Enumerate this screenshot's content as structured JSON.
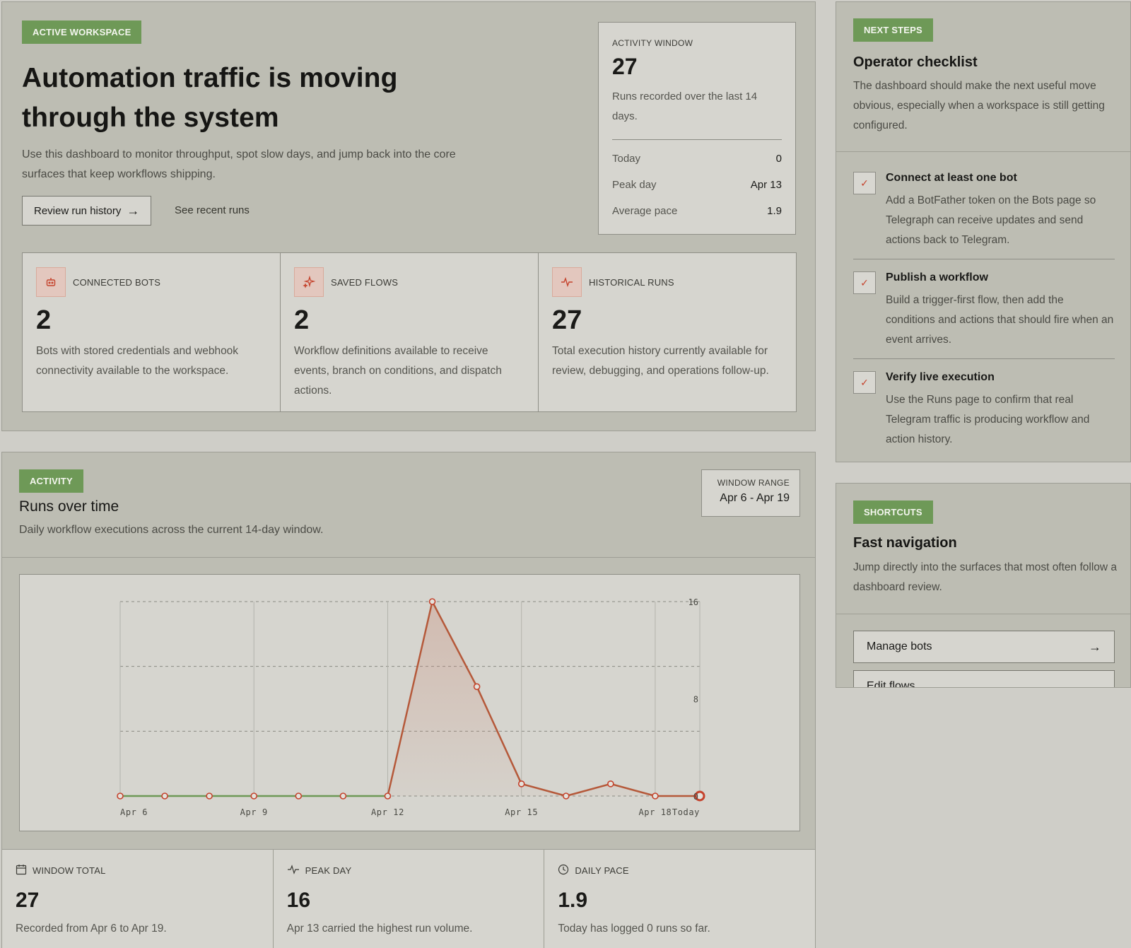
{
  "hero": {
    "tag": "ACTIVE WORKSPACE",
    "title": "Automation traffic is moving through the system",
    "description": "Use this dashboard to monitor throughput, spot slow days, and jump back into the core surfaces that keep workflows shipping.",
    "primary_button": "Review run history",
    "secondary_link": "See recent runs"
  },
  "activity_window": {
    "label": "ACTIVITY WINDOW",
    "value": "27",
    "description": "Runs recorded over the last 14 days.",
    "rows": [
      {
        "key": "Today",
        "value": "0"
      },
      {
        "key": "Peak day",
        "value": "Apr 13"
      },
      {
        "key": "Average pace",
        "value": "1.9"
      }
    ]
  },
  "stats": [
    {
      "icon": "robot-icon",
      "label": "CONNECTED BOTS",
      "value": "2",
      "description": "Bots with stored credentials and webhook connectivity available to the workspace."
    },
    {
      "icon": "sparkle-icon",
      "label": "SAVED FLOWS",
      "value": "2",
      "description": "Workflow definitions available to receive events, branch on conditions, and dispatch actions."
    },
    {
      "icon": "pulse-icon",
      "label": "HISTORICAL RUNS",
      "value": "27",
      "description": "Total execution history currently available for review, debugging, and operations follow-up."
    }
  ],
  "activity": {
    "tag": "ACTIVITY",
    "title": "Runs over time",
    "description": "Daily workflow executions across the current 14-day window.",
    "range_label": "WINDOW RANGE",
    "range_value": "Apr 6 - Apr 19"
  },
  "chart_data": {
    "type": "line",
    "x": [
      "Apr 6",
      "Apr 7",
      "Apr 8",
      "Apr 9",
      "Apr 10",
      "Apr 11",
      "Apr 12",
      "Apr 13",
      "Apr 14",
      "Apr 15",
      "Apr 16",
      "Apr 17",
      "Apr 18",
      "Apr 19"
    ],
    "values": [
      0,
      0,
      0,
      0,
      0,
      0,
      0,
      16,
      9,
      1,
      0,
      1,
      0,
      0
    ],
    "x_tick_labels": [
      {
        "index": 0,
        "label": "Apr 6"
      },
      {
        "index": 3,
        "label": "Apr 9"
      },
      {
        "index": 6,
        "label": "Apr 12"
      },
      {
        "index": 9,
        "label": "Apr 15"
      },
      {
        "index": 12,
        "label": "Apr 18"
      },
      {
        "index": 13,
        "label": "Today"
      }
    ],
    "y_ticks": [
      0,
      8,
      16
    ],
    "ylim": [
      0,
      16
    ],
    "grid": true,
    "colors": {
      "line": "#b5593a",
      "zero_line": "#6e9957",
      "point": "#c5432d"
    }
  },
  "summary": [
    {
      "icon": "calendar-icon",
      "label": "WINDOW TOTAL",
      "value": "27",
      "description": "Recorded from Apr 6 to Apr 19."
    },
    {
      "icon": "pulse-icon",
      "label": "PEAK DAY",
      "value": "16",
      "description": "Apr 13 carried the highest run volume."
    },
    {
      "icon": "clock-icon",
      "label": "DAILY PACE",
      "value": "1.9",
      "description": "Today has logged 0 runs so far."
    }
  ],
  "next_steps": {
    "tag": "NEXT STEPS",
    "title": "Operator checklist",
    "description": "The dashboard should make the next useful move obvious, especially when a workspace is still getting configured.",
    "items": [
      {
        "title": "Connect at least one bot",
        "description": "Add a BotFather token on the Bots page so Telegraph can receive updates and send actions back to Telegram."
      },
      {
        "title": "Publish a workflow",
        "description": "Build a trigger-first flow, then add the conditions and actions that should fire when an event arrives."
      },
      {
        "title": "Verify live execution",
        "description": "Use the Runs page to confirm that real Telegram traffic is producing workflow and action history."
      }
    ]
  },
  "shortcuts": {
    "tag": "SHORTCUTS",
    "title": "Fast navigation",
    "description": "Jump directly into the surfaces that most often follow a dashboard review.",
    "buttons": [
      "Manage bots",
      "Edit flows"
    ]
  },
  "colors": {
    "accent_green": "#6e9957",
    "accent_red": "#c5432d",
    "panel": "#bdbdb3",
    "card": "#d6d5cf"
  }
}
